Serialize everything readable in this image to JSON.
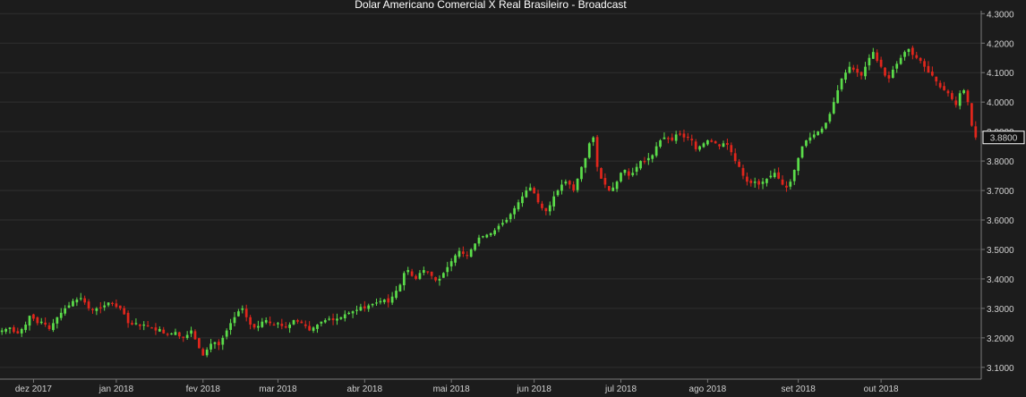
{
  "chart_data": {
    "type": "candlestick",
    "title": "Dolar Americano Comercial X Real Brasileiro - Broadcast",
    "y_ticks": [
      "4.3000",
      "4.2000",
      "4.1000",
      "4.0000",
      "3.9000",
      "3.8000",
      "3.7000",
      "3.6000",
      "3.5000",
      "3.4000",
      "3.3000",
      "3.2000",
      "3.1000"
    ],
    "ylim": [
      3.06,
      4.31
    ],
    "x_tick_labels": [
      "dez 2017",
      "jan 2018",
      "fev 2018",
      "mar 2018",
      "abr 2018",
      "mai 2018",
      "jun 2018",
      "jul 2018",
      "ago 2018",
      "set 2018",
      "out 2018"
    ],
    "x_tick_index": [
      8,
      29,
      51,
      70,
      92,
      114,
      135,
      157,
      179,
      202,
      223
    ],
    "last_price": "3.8800",
    "colors": {
      "up": "#5bdc4a",
      "down": "#e0261c",
      "background": "#1c1c1c",
      "grid": "#2f2f2f",
      "last_price_box": "#ffffff"
    },
    "grid": true,
    "close": [
      3.225,
      3.23,
      3.235,
      3.22,
      3.215,
      3.23,
      3.245,
      3.275,
      3.265,
      3.25,
      3.255,
      3.245,
      3.23,
      3.25,
      3.27,
      3.285,
      3.3,
      3.31,
      3.325,
      3.33,
      3.335,
      3.32,
      3.3,
      3.295,
      3.3,
      3.3,
      3.31,
      3.32,
      3.315,
      3.305,
      3.3,
      3.28,
      3.25,
      3.245,
      3.25,
      3.24,
      3.245,
      3.24,
      3.235,
      3.225,
      3.23,
      3.215,
      3.21,
      3.215,
      3.22,
      3.205,
      3.2,
      3.21,
      3.225,
      3.195,
      3.165,
      3.14,
      3.16,
      3.18,
      3.185,
      3.175,
      3.2,
      3.225,
      3.25,
      3.27,
      3.29,
      3.3,
      3.27,
      3.245,
      3.235,
      3.24,
      3.255,
      3.26,
      3.25,
      3.245,
      3.25,
      3.24,
      3.235,
      3.245,
      3.26,
      3.255,
      3.25,
      3.24,
      3.225,
      3.235,
      3.245,
      3.255,
      3.26,
      3.265,
      3.26,
      3.265,
      3.27,
      3.28,
      3.285,
      3.29,
      3.295,
      3.305,
      3.3,
      3.31,
      3.315,
      3.32,
      3.325,
      3.33,
      3.32,
      3.34,
      3.36,
      3.38,
      3.42,
      3.43,
      3.41,
      3.4,
      3.42,
      3.43,
      3.425,
      3.41,
      3.395,
      3.4,
      3.42,
      3.44,
      3.46,
      3.48,
      3.495,
      3.485,
      3.48,
      3.5,
      3.52,
      3.54,
      3.545,
      3.55,
      3.555,
      3.565,
      3.58,
      3.59,
      3.6,
      3.62,
      3.64,
      3.66,
      3.68,
      3.7,
      3.71,
      3.69,
      3.66,
      3.64,
      3.63,
      3.65,
      3.68,
      3.7,
      3.72,
      3.73,
      3.72,
      3.7,
      3.74,
      3.78,
      3.81,
      3.86,
      3.88,
      3.78,
      3.74,
      3.72,
      3.7,
      3.71,
      3.73,
      3.76,
      3.77,
      3.75,
      3.76,
      3.78,
      3.8,
      3.8,
      3.81,
      3.82,
      3.85,
      3.87,
      3.88,
      3.875,
      3.87,
      3.89,
      3.89,
      3.88,
      3.88,
      3.87,
      3.84,
      3.85,
      3.86,
      3.87,
      3.865,
      3.86,
      3.85,
      3.86,
      3.855,
      3.83,
      3.8,
      3.78,
      3.75,
      3.73,
      3.725,
      3.73,
      3.72,
      3.73,
      3.74,
      3.75,
      3.76,
      3.74,
      3.72,
      3.71,
      3.73,
      3.77,
      3.81,
      3.85,
      3.87,
      3.88,
      3.89,
      3.9,
      3.91,
      3.93,
      3.96,
      4.0,
      4.04,
      4.08,
      4.1,
      4.12,
      4.11,
      4.1,
      4.09,
      4.12,
      4.15,
      4.17,
      4.14,
      4.12,
      4.09,
      4.08,
      4.11,
      4.13,
      4.15,
      4.17,
      4.18,
      4.16,
      4.15,
      4.14,
      4.12,
      4.1,
      4.09,
      4.07,
      4.05,
      4.04,
      4.03,
      4.01,
      3.99,
      4.03,
      4.04,
      4.0,
      3.92,
      3.88
    ]
  }
}
